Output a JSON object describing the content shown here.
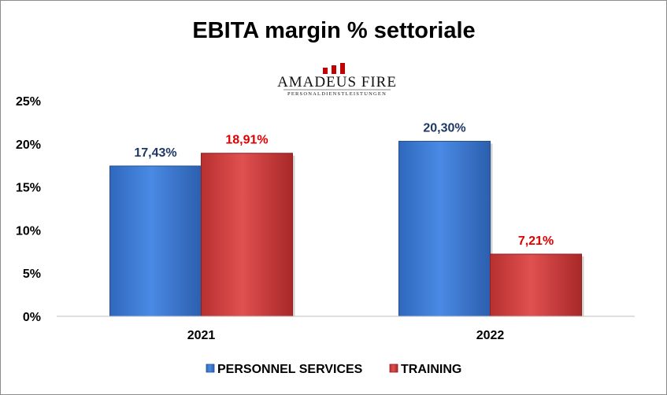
{
  "chart_data": {
    "type": "bar",
    "title": "EBITA margin % settoriale",
    "categories": [
      "2021",
      "2022"
    ],
    "series": [
      {
        "name": "PERSONNEL SERVICES",
        "values": [
          17.43,
          20.3
        ],
        "labels": [
          "17,43%",
          "20,30%"
        ],
        "color": "#3f7fd8",
        "label_color": "#1f3864"
      },
      {
        "name": "TRAINING",
        "values": [
          18.91,
          7.21
        ],
        "labels": [
          "18,91%",
          "7,21%"
        ],
        "color": "#d64040",
        "label_color": "#e00000"
      }
    ],
    "yticks": [
      0,
      5,
      10,
      15,
      20,
      25
    ],
    "ytick_labels": [
      "0%",
      "5%",
      "10%",
      "15%",
      "20%",
      "25%"
    ],
    "ylim": [
      0,
      25
    ],
    "grid": false,
    "legend_position": "bottom"
  },
  "logo": {
    "name": "AMADEUS FIRE",
    "subtitle": "PERSONALDIENSTLEISTUNGEN"
  }
}
